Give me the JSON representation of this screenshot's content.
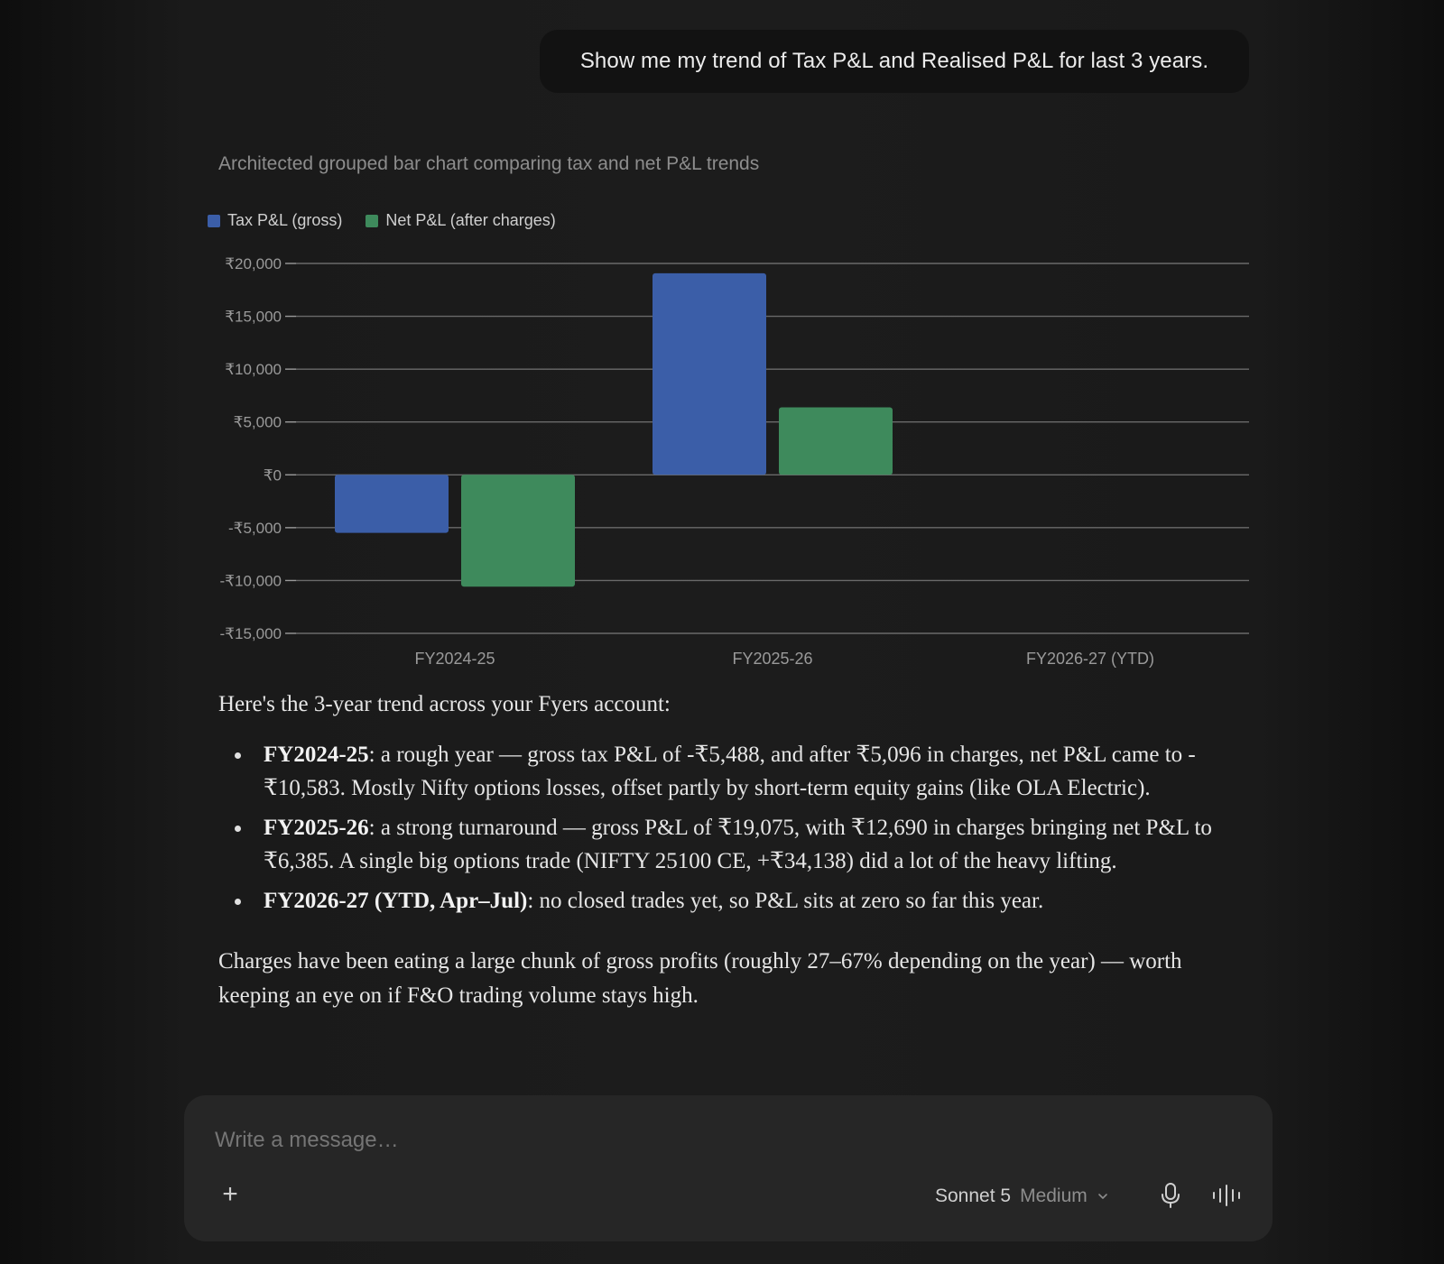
{
  "user_message": "Show me my trend of Tax P&L and Realised P&L for last 3 years.",
  "thinking_label": "Architected grouped bar chart comparing tax and net P&L trends",
  "chart_data": {
    "type": "bar",
    "categories": [
      "FY2024-25",
      "FY2025-26",
      "FY2026-27 (YTD)"
    ],
    "series": [
      {
        "name": "Tax P&L (gross)",
        "color": "#3b5ea8",
        "values": [
          -5488,
          19075,
          0
        ]
      },
      {
        "name": "Net P&L (after charges)",
        "color": "#3e8a5c",
        "values": [
          -10583,
          6385,
          0
        ]
      }
    ],
    "ylim": [
      -15000,
      20000
    ],
    "yticks": [
      20000,
      15000,
      10000,
      5000,
      0,
      -5000,
      -10000,
      -15000
    ],
    "ytick_labels": [
      "₹20,000",
      "₹15,000",
      "₹10,000",
      "₹5,000",
      "₹0",
      "-₹5,000",
      "-₹10,000",
      "-₹15,000"
    ],
    "grid": true,
    "legend_position": "top-left"
  },
  "response": {
    "intro": "Here's the 3-year trend across your Fyers account:",
    "bullets": [
      {
        "label": "FY2024-25",
        "text": ": a rough year — gross tax P&L of -₹5,488, and after ₹5,096 in charges, net P&L came to -₹10,583. Mostly Nifty options losses, offset partly by short-term equity gains (like OLA Electric)."
      },
      {
        "label": "FY2025-26",
        "text": ": a strong turnaround — gross P&L of ₹19,075, with ₹12,690 in charges bringing net P&L to ₹6,385. A single big options trade (NIFTY 25100 CE, +₹34,138) did a lot of the heavy lifting."
      },
      {
        "label": "FY2026-27 (YTD, Apr–Jul)",
        "text": ": no closed trades yet, so P&L sits at zero so far this year."
      }
    ],
    "summary": "Charges have been eating a large chunk of gross profits (roughly 27–67% depending on the year) — worth keeping an eye on if F&O trading volume stays high."
  },
  "composer": {
    "placeholder": "Write a message…",
    "add_icon": "plus-icon",
    "model_name": "Sonnet 5",
    "effort": "Medium",
    "mic_icon": "microphone-icon",
    "voice_icon": "voice-waveform-icon"
  }
}
